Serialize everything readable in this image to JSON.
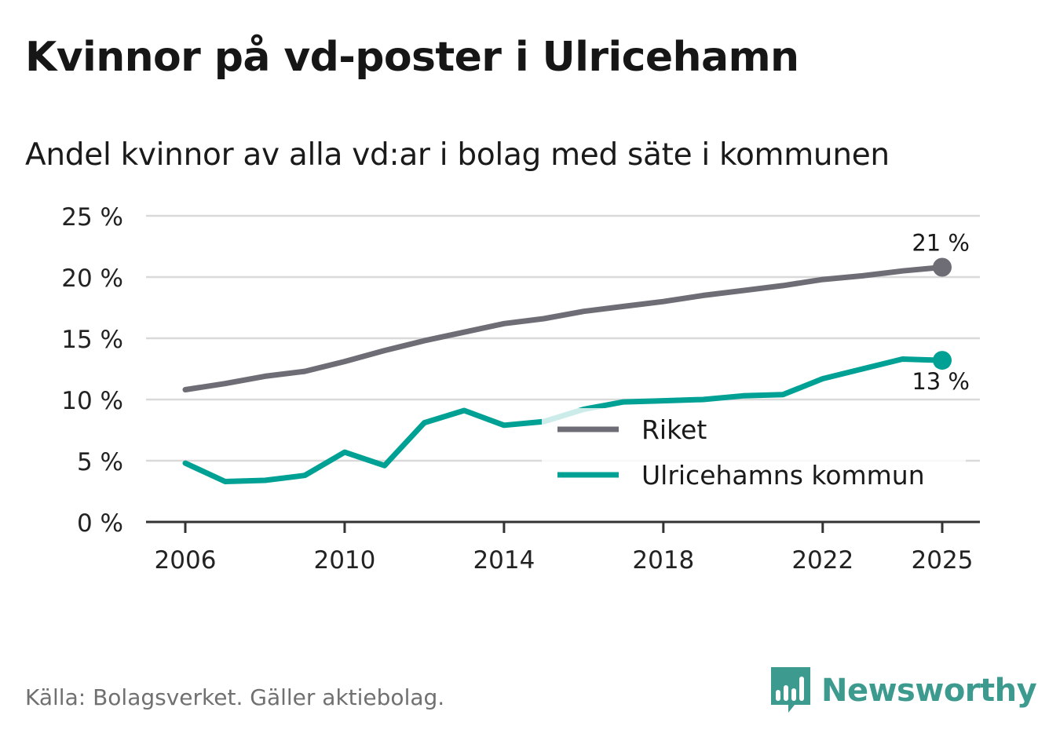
{
  "title": "Kvinnor på vd-poster i Ulricehamn",
  "subtitle": "Andel kvinnor av alla vd:ar i bolag med säte i kommunen",
  "source": "Källa: Bolagsverket. Gäller aktiebolag.",
  "logo": {
    "text": "Newsworthy",
    "icon": "newsworthy-logo-icon",
    "color": "#3d9a8e"
  },
  "colors": {
    "riket": "#6e6d75",
    "ulricehamn": "#00a195",
    "grid": "#d9d9d9",
    "axis": "#333333"
  },
  "chart_data": {
    "type": "line",
    "title": "Kvinnor på vd-poster i Ulricehamn",
    "subtitle": "Andel kvinnor av alla vd:ar i bolag med säte i kommunen",
    "xlabel": "",
    "ylabel": "",
    "xlim": [
      2006,
      2025
    ],
    "ylim": [
      0,
      25
    ],
    "y_ticks": [
      0,
      5,
      10,
      15,
      20,
      25
    ],
    "y_tick_labels": [
      "0 %",
      "5 %",
      "10 %",
      "15 %",
      "20 %",
      "25 %"
    ],
    "x_ticks": [
      2006,
      2010,
      2014,
      2018,
      2022,
      2025
    ],
    "x_tick_labels": [
      "2006",
      "2010",
      "2014",
      "2018",
      "2022",
      "2025"
    ],
    "grid": true,
    "legend_position": "bottom-right",
    "x": [
      2006,
      2007,
      2008,
      2009,
      2010,
      2011,
      2012,
      2013,
      2014,
      2015,
      2016,
      2017,
      2018,
      2019,
      2020,
      2021,
      2022,
      2023,
      2024,
      2025
    ],
    "series": [
      {
        "name": "Riket",
        "color": "#6e6d75",
        "values": [
          10.8,
          11.3,
          11.9,
          12.3,
          13.1,
          14.0,
          14.8,
          15.5,
          16.2,
          16.6,
          17.2,
          17.6,
          18.0,
          18.5,
          18.9,
          19.3,
          19.8,
          20.1,
          20.5,
          20.8
        ],
        "end_label": "21 %",
        "end_label_position": "above"
      },
      {
        "name": "Ulricehamns kommun",
        "color": "#00a195",
        "values": [
          4.8,
          3.3,
          3.4,
          3.8,
          5.7,
          4.6,
          8.1,
          9.1,
          7.9,
          8.2,
          9.2,
          9.8,
          9.9,
          10.0,
          10.3,
          10.4,
          11.7,
          12.5,
          13.3,
          13.2
        ],
        "end_label": "13 %",
        "end_label_position": "below"
      }
    ]
  }
}
